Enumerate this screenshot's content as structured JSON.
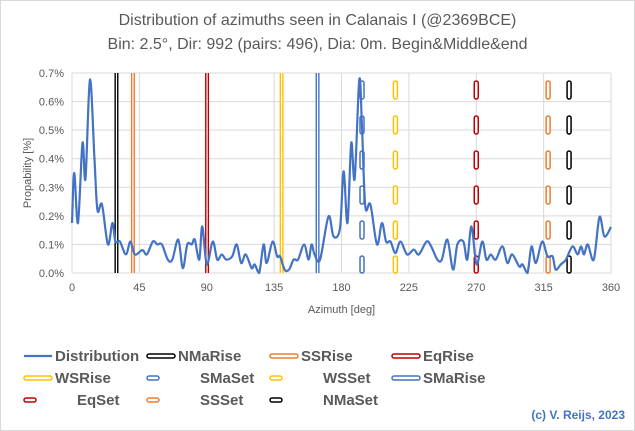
{
  "chart_data": {
    "type": "line",
    "title": "Distribution of azimuths seen in Calanais I (@2369BCE)",
    "subtitle": "Bin: 2.5°, Dir: 992 (pairs: 496), Dia: 0m. Begin&Middle&end",
    "xlabel": "Azimuth [deg]",
    "ylabel": "Propability [%]",
    "xlim": [
      0,
      360
    ],
    "ylim": [
      0,
      0.7
    ],
    "x_ticks": [
      "0",
      "45",
      "90",
      "135",
      "180",
      "225",
      "270",
      "315",
      "360"
    ],
    "y_ticks": [
      "0.0%",
      "0.1%",
      "0.2%",
      "0.3%",
      "0.4%",
      "0.5%",
      "0.6%",
      "0.7%"
    ],
    "grid": true,
    "legend_position": "bottom",
    "series": [
      {
        "name": "Distribution",
        "color": "#4472C4",
        "style": "line",
        "x": [
          0,
          1.5,
          4,
          7,
          9,
          12,
          15,
          17,
          20,
          24,
          27,
          29,
          32,
          36,
          39,
          42,
          47,
          50,
          54,
          57,
          60,
          64,
          67,
          71,
          74,
          77,
          80,
          82,
          85,
          87,
          90,
          94,
          97,
          100,
          103,
          107,
          110,
          113,
          116,
          120,
          122,
          125,
          128,
          130,
          134,
          137,
          139,
          142,
          145,
          148,
          151,
          155,
          158,
          160,
          162,
          165.7,
          171.3,
          174.7,
          179,
          181.4,
          184,
          186.5,
          188.8,
          191.9,
          193.7,
          195.9,
          199.3,
          203.7,
          207,
          209.8,
          212.7,
          216,
          219.4,
          223.8,
          228.3,
          231.7,
          236.8,
          239.9,
          244,
          247,
          250.7,
          254.5,
          257.4,
          261.4,
          264,
          266.8,
          270.2,
          274,
          276.8,
          279.7,
          283,
          287.5,
          290.8,
          294,
          298.7,
          300.9,
          304.2,
          306.9,
          309.8,
          314,
          317.6,
          321,
          323,
          326.5,
          329.9,
          334.3,
          337.7,
          340,
          342,
          344.5,
          348.5,
          352.3,
          355.6,
          360
        ],
        "y": [
          0.175,
          0.35,
          0.175,
          0.455,
          0.33,
          0.677,
          0.4,
          0.22,
          0.24,
          0.1,
          0.175,
          0.11,
          0.11,
          0.065,
          0.11,
          0.065,
          0.08,
          0.065,
          0.11,
          0.1,
          0.1,
          0.047,
          0.047,
          0.117,
          0.017,
          0.1,
          0.1,
          0.117,
          0.047,
          0.163,
          0.03,
          0.11,
          0.047,
          0.065,
          0.047,
          0.058,
          0.1,
          0.035,
          0.065,
          0.017,
          0.03,
          0.0,
          0.1,
          0.035,
          0.11,
          0.058,
          0.058,
          0.012,
          0.012,
          0.047,
          0.047,
          0.1,
          0.047,
          0.1,
          0.065,
          0.047,
          0.198,
          0.128,
          0.157,
          0.356,
          0.175,
          0.455,
          0.33,
          0.677,
          0.51,
          0.233,
          0.24,
          0.1,
          0.175,
          0.11,
          0.11,
          0.07,
          0.11,
          0.065,
          0.082,
          0.065,
          0.11,
          0.093,
          0.047,
          0.047,
          0.117,
          0.012,
          0.1,
          0.11,
          0.047,
          0.163,
          0.03,
          0.11,
          0.047,
          0.065,
          0.047,
          0.093,
          0.035,
          0.065,
          0.023,
          0.03,
          0.0,
          0.093,
          0.035,
          0.11,
          0.058,
          0.058,
          0.012,
          0.03,
          0.047,
          0.093,
          0.065,
          0.093,
          0.065,
          0.1,
          0.047,
          0.196,
          0.128,
          0.161
        ]
      },
      {
        "name": "NMaRise",
        "color": "#000000",
        "style": "solid",
        "azimuth": 29.7
      },
      {
        "name": "SSRise",
        "color": "#ED7D31",
        "style": "solid",
        "azimuth": 40.7
      },
      {
        "name": "EqRise",
        "color": "#C00000",
        "style": "solid",
        "azimuth": 90.2
      },
      {
        "name": "WSRise",
        "color": "#FFC000",
        "style": "solid",
        "azimuth": 140
      },
      {
        "name": "SMaSet",
        "color": "#4472C4",
        "style": "dashed",
        "azimuth": 193.7
      },
      {
        "name": "WSSet",
        "color": "#FFC000",
        "style": "dashed",
        "azimuth": 216
      },
      {
        "name": "SMaRise",
        "color": "#4472C4",
        "style": "solid",
        "azimuth": 164
      },
      {
        "name": "EqSet",
        "color": "#C00000",
        "style": "dashed",
        "azimuth": 270
      },
      {
        "name": "SSSet",
        "color": "#ED7D31",
        "style": "dashed",
        "azimuth": 318
      },
      {
        "name": "NMaSet",
        "color": "#000000",
        "style": "dashed",
        "azimuth": 332
      }
    ]
  },
  "copyright": "(c) V. Reijs, 2023"
}
